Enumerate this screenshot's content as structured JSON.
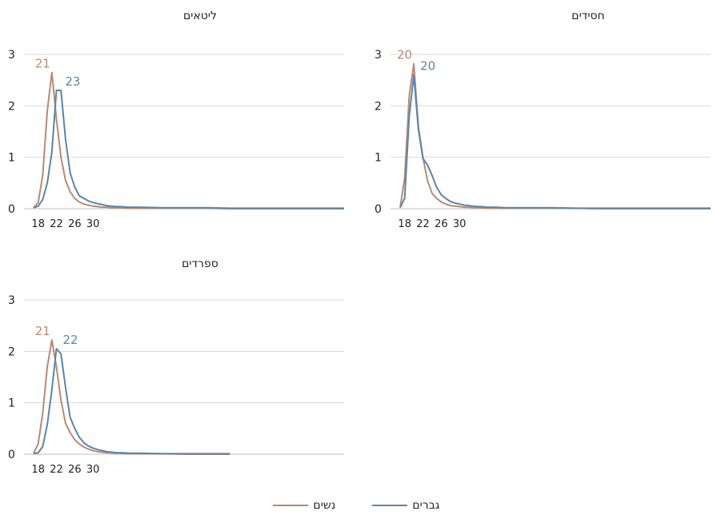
{
  "colors": {
    "women": "#b88a74",
    "men": "#5b85a8",
    "grid": "#d9d9d9",
    "axis": "#bfbfbf"
  },
  "legend": {
    "women_label": "נשים",
    "men_label": "גברים"
  },
  "chart_data": [
    {
      "type": "line",
      "title": "חסידים",
      "x": [
        17,
        18,
        19,
        20,
        21,
        22,
        23,
        24,
        25,
        26,
        27,
        28,
        29,
        30,
        31,
        32,
        33,
        34,
        35,
        36,
        38,
        40,
        45,
        50,
        55,
        60,
        70,
        80,
        85
      ],
      "ylim": [
        0,
        3
      ],
      "yticks": [
        0,
        1,
        2,
        3
      ],
      "xticks": [
        18,
        22,
        26,
        30
      ],
      "series": [
        {
          "name": "נשים",
          "key": "women",
          "values": [
            0.02,
            0.6,
            2.2,
            2.82,
            1.6,
            1.0,
            0.55,
            0.3,
            0.2,
            0.13,
            0.09,
            0.06,
            0.05,
            0.04,
            0.03,
            0.03,
            0.02,
            0.02,
            0.02,
            0.01,
            0.01,
            0.01,
            0.01,
            0.01,
            0.01,
            0.0,
            0.0,
            0.0,
            0.0
          ],
          "peak_x": 20,
          "peak_label": "20"
        },
        {
          "name": "גברים",
          "key": "men",
          "values": [
            0.02,
            0.2,
            1.8,
            2.6,
            1.55,
            0.98,
            0.85,
            0.65,
            0.42,
            0.27,
            0.2,
            0.14,
            0.11,
            0.09,
            0.07,
            0.06,
            0.05,
            0.04,
            0.04,
            0.03,
            0.03,
            0.02,
            0.02,
            0.02,
            0.01,
            0.01,
            0.01,
            0.01,
            0.01
          ],
          "peak_x": 20,
          "peak_label": "20"
        }
      ]
    },
    {
      "type": "line",
      "title": "ליטאים",
      "x": [
        17,
        18,
        19,
        20,
        21,
        22,
        23,
        24,
        25,
        26,
        27,
        28,
        29,
        30,
        31,
        32,
        33,
        34,
        35,
        36,
        38,
        40,
        45,
        50,
        55,
        60,
        70,
        80,
        85
      ],
      "ylim": [
        0,
        3
      ],
      "yticks": [
        0,
        1,
        2,
        3
      ],
      "xticks": [
        18,
        22,
        26,
        30
      ],
      "series": [
        {
          "name": "נשים",
          "key": "women",
          "values": [
            0.02,
            0.12,
            0.65,
            1.9,
            2.65,
            1.75,
            1.0,
            0.55,
            0.33,
            0.2,
            0.13,
            0.09,
            0.07,
            0.05,
            0.04,
            0.03,
            0.03,
            0.02,
            0.02,
            0.02,
            0.01,
            0.01,
            0.01,
            0.01,
            0.01,
            0.0,
            0.0,
            0.0,
            0.0
          ],
          "peak_x": 21,
          "peak_label": "21"
        },
        {
          "name": "גברים",
          "key": "men",
          "values": [
            0.02,
            0.05,
            0.18,
            0.5,
            1.1,
            2.3,
            2.3,
            1.35,
            0.7,
            0.42,
            0.25,
            0.2,
            0.15,
            0.12,
            0.1,
            0.08,
            0.06,
            0.05,
            0.04,
            0.04,
            0.03,
            0.03,
            0.02,
            0.02,
            0.02,
            0.01,
            0.01,
            0.01,
            0.01
          ],
          "peak_x": 22.5,
          "peak_label": "23"
        }
      ]
    },
    {
      "type": "line",
      "title": "ספרדים",
      "x": [
        17,
        18,
        19,
        20,
        21,
        22,
        23,
        24,
        25,
        26,
        27,
        28,
        29,
        30,
        31,
        32,
        33,
        34,
        35,
        36,
        38,
        40,
        45,
        50,
        55,
        60
      ],
      "ylim": [
        0,
        3
      ],
      "yticks": [
        0,
        1,
        2,
        3
      ],
      "xticks": [
        18,
        22,
        26,
        30
      ],
      "series": [
        {
          "name": "נשים",
          "key": "women",
          "values": [
            0.02,
            0.2,
            0.8,
            1.7,
            2.22,
            1.7,
            1.05,
            0.6,
            0.42,
            0.28,
            0.2,
            0.14,
            0.1,
            0.07,
            0.05,
            0.04,
            0.03,
            0.03,
            0.02,
            0.02,
            0.01,
            0.01,
            0.01,
            0.0,
            0.0,
            0.0
          ],
          "peak_x": 21,
          "peak_label": "21"
        },
        {
          "name": "גברים",
          "key": "men",
          "values": [
            0.01,
            0.03,
            0.15,
            0.58,
            1.25,
            2.05,
            1.95,
            1.3,
            0.72,
            0.5,
            0.33,
            0.22,
            0.16,
            0.12,
            0.09,
            0.07,
            0.05,
            0.04,
            0.03,
            0.03,
            0.02,
            0.02,
            0.01,
            0.01,
            0.01,
            0.01
          ],
          "peak_x": 22,
          "peak_label": "22"
        }
      ]
    }
  ]
}
